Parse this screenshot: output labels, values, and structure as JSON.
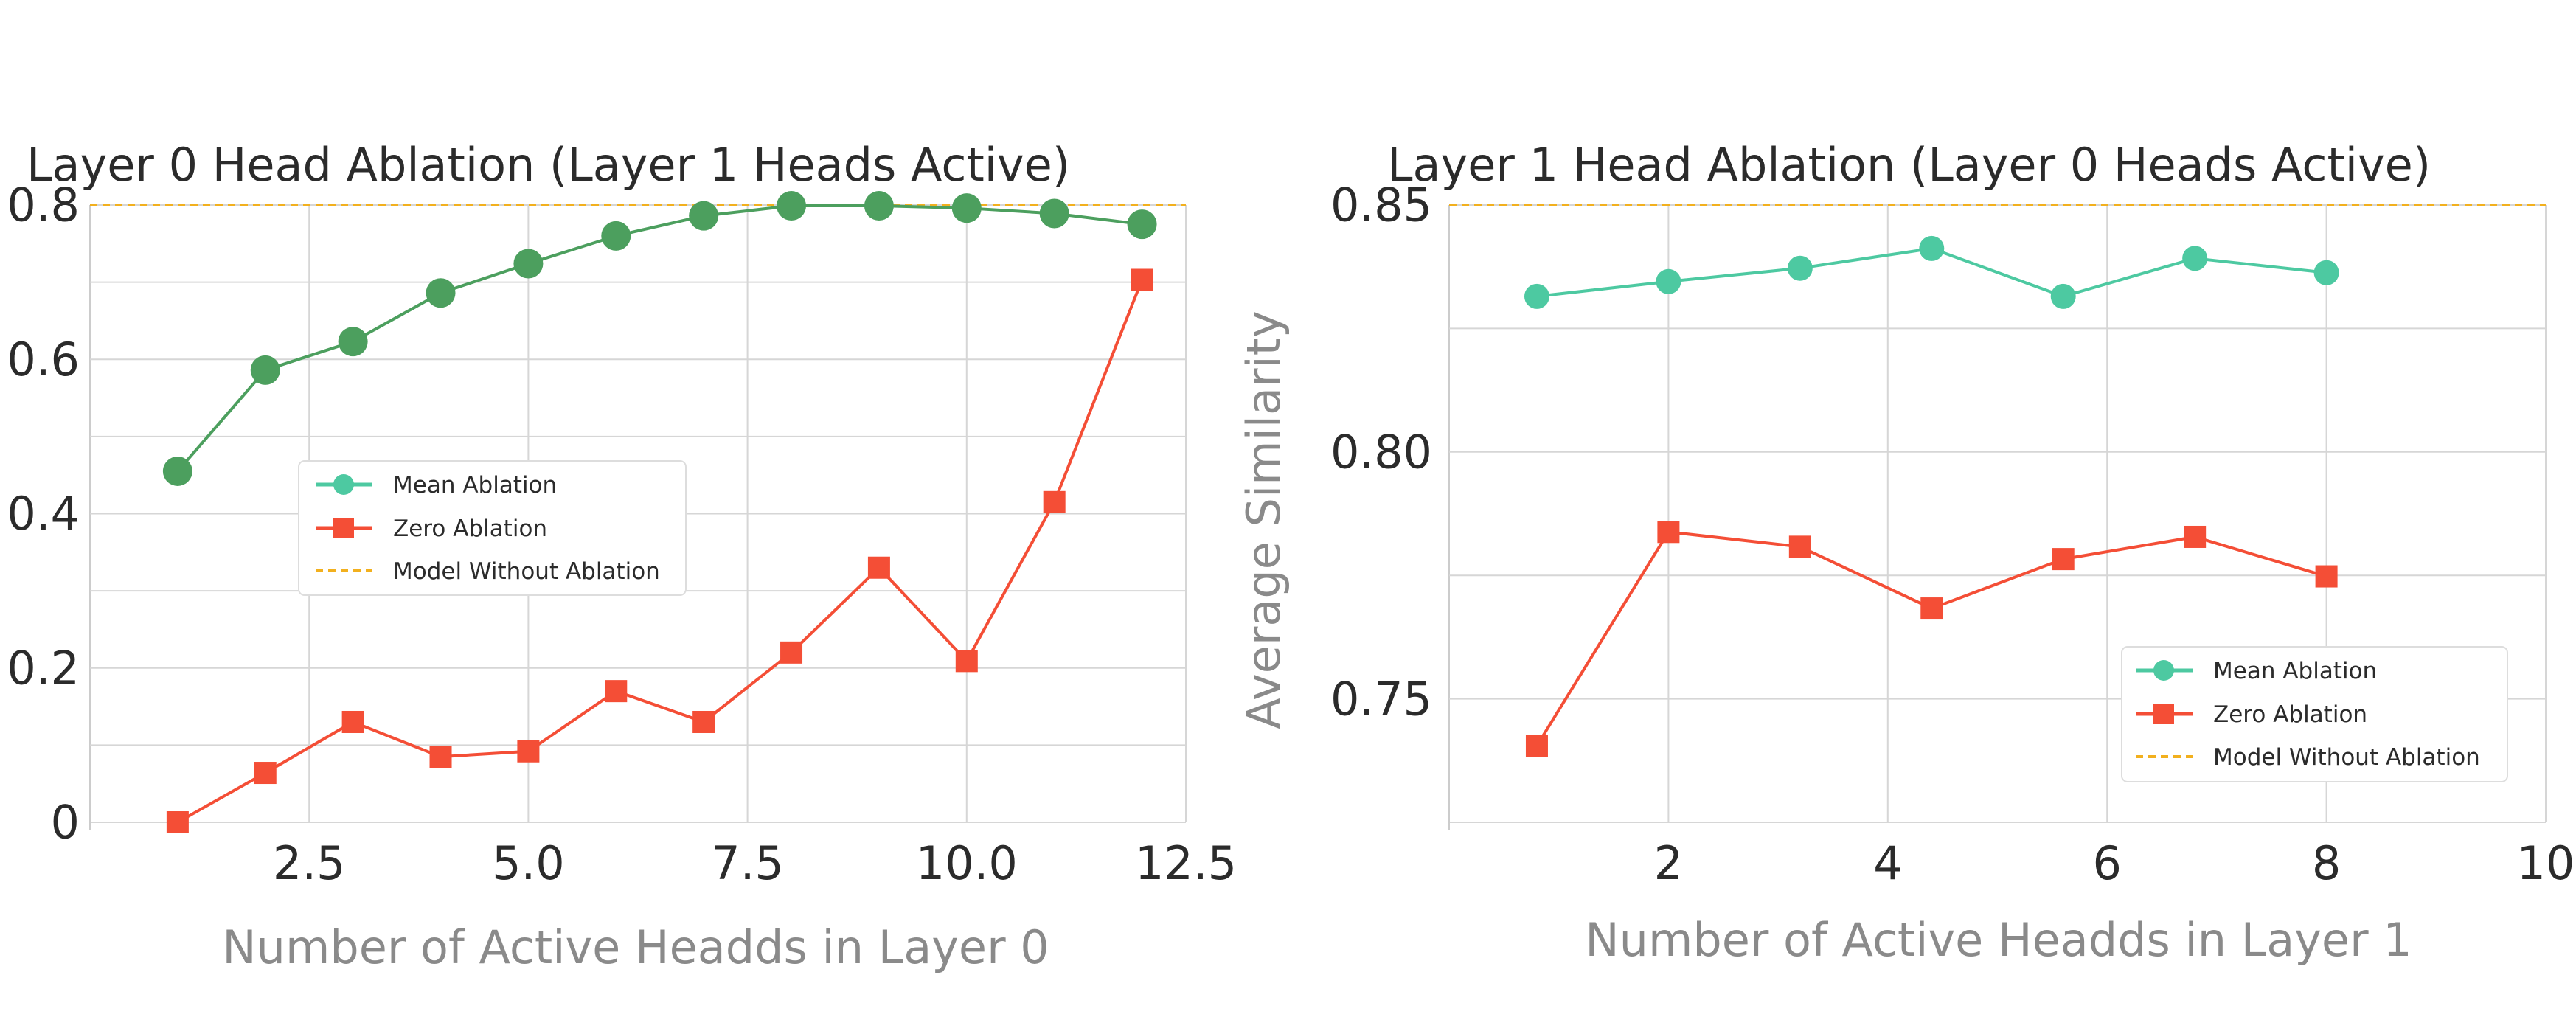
{
  "chart_data": [
    {
      "type": "line",
      "title": "Layer 0 Head Ablation (Layer 1 Heads Active)",
      "xlabel": "Number of Active Headds in Layer 0",
      "ylabel": "",
      "xlim": [
        0,
        12.5
      ],
      "ylim": [
        0,
        0.8
      ],
      "xticks": [
        2.5,
        5.0,
        7.5,
        10.0,
        12.5
      ],
      "xtick_labels": [
        "2.5",
        "5.0",
        "7.5",
        "10.0",
        "12.5"
      ],
      "yticks": [
        0,
        0.2,
        0.4,
        0.6,
        0.8
      ],
      "ytick_labels": [
        "0",
        "0.2",
        "0.4",
        "0.6",
        "0.8"
      ],
      "grid": true,
      "legend_position": "center-left",
      "x": [
        1,
        2,
        3,
        4,
        5,
        6,
        7,
        8,
        9,
        10,
        11,
        12
      ],
      "series": [
        {
          "name": "Mean Ablation",
          "color": "#4c9f5e",
          "marker": "circle",
          "values": [
            0.455,
            0.586,
            0.623,
            0.686,
            0.724,
            0.76,
            0.786,
            0.799,
            0.799,
            0.796,
            0.789,
            0.775
          ]
        },
        {
          "name": "Zero Ablation",
          "color": "#f44e36",
          "marker": "square",
          "values": [
            0.0,
            0.064,
            0.13,
            0.085,
            0.092,
            0.17,
            0.13,
            0.22,
            0.33,
            0.209,
            0.415,
            0.703
          ]
        }
      ],
      "reference_line": {
        "name": "Model Without Ablation",
        "value": 0.8,
        "color": "#f2b01e",
        "style": "dashed"
      },
      "legend": [
        "Mean Ablation",
        "Zero Ablation",
        "Model Without Ablation"
      ]
    },
    {
      "type": "line",
      "title": "Layer 1 Head Ablation (Layer 0 Heads Active)",
      "xlabel": "Number of Active Headds in Layer 1",
      "ylabel": "Average Similarity",
      "xlim": [
        0,
        10
      ],
      "ylim": [
        0.725,
        0.85
      ],
      "xticks": [
        2,
        4,
        6,
        8,
        10
      ],
      "xtick_labels": [
        "2",
        "4",
        "6",
        "8",
        "10"
      ],
      "yticks": [
        0.75,
        0.8,
        0.85
      ],
      "ytick_labels": [
        "0.75",
        "0.80",
        "0.85"
      ],
      "grid": true,
      "legend_position": "lower-right",
      "x": [
        0.8,
        2.0,
        3.2,
        4.4,
        5.6,
        6.8,
        8.0
      ],
      "series": [
        {
          "name": "Mean Ablation",
          "color": "#4dc9a1",
          "marker": "circle",
          "values": [
            0.8315,
            0.8345,
            0.8372,
            0.8412,
            0.8315,
            0.8392,
            0.8363
          ]
        },
        {
          "name": "Zero Ablation",
          "color": "#f44e36",
          "marker": "square",
          "values": [
            0.7405,
            0.7838,
            0.7808,
            0.7683,
            0.7783,
            0.7828,
            0.7748
          ]
        }
      ],
      "reference_line": {
        "name": "Model Without Ablation",
        "value": 0.85,
        "color": "#f2b01e",
        "style": "dashed"
      },
      "legend": [
        "Mean Ablation",
        "Zero Ablation",
        "Model Without Ablation"
      ]
    }
  ]
}
